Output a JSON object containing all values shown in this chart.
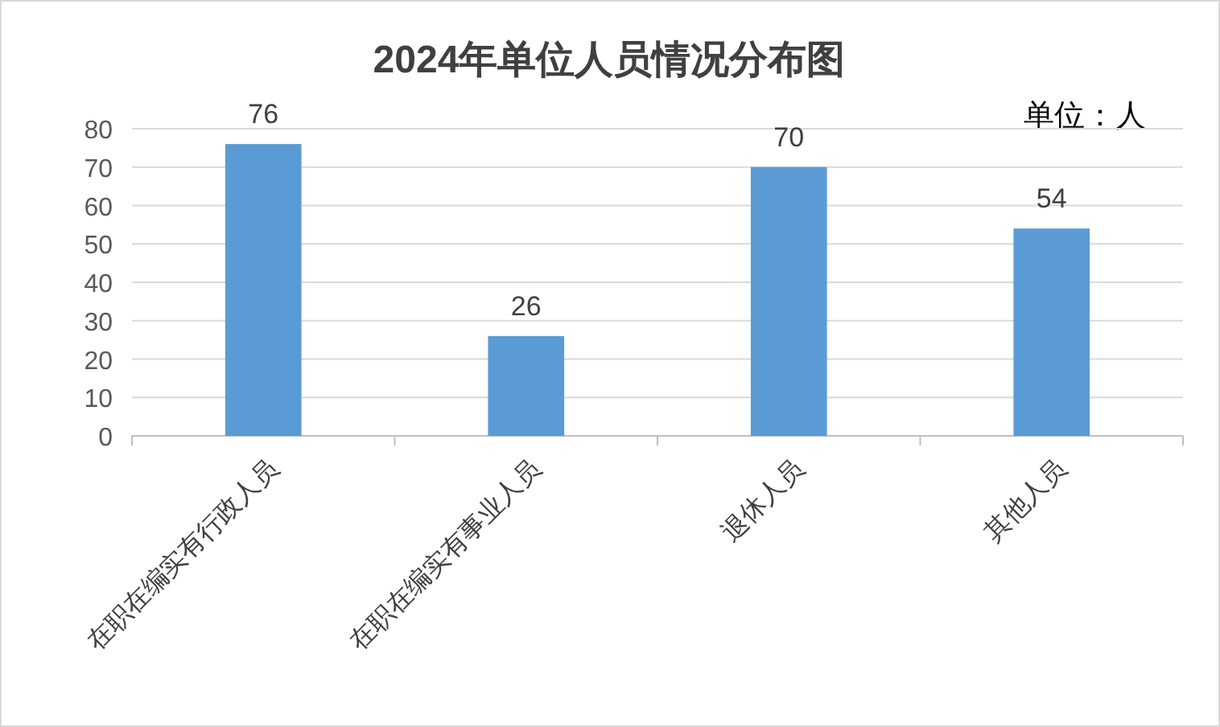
{
  "chart_data": {
    "type": "bar",
    "title": "2024年单位人员情况分布图",
    "annotations": [
      "单位：人"
    ],
    "categories": [
      "在职在编实有行政人员",
      "在职在编实有事业人员",
      "退休人员",
      "其他人员"
    ],
    "values": [
      76,
      26,
      70,
      54
    ],
    "color": "#5b9bd5",
    "ylim": [
      0,
      80
    ],
    "yticks": [
      0,
      10,
      20,
      30,
      40,
      50,
      60,
      70,
      80
    ],
    "grid": "y",
    "data_labels": true
  }
}
